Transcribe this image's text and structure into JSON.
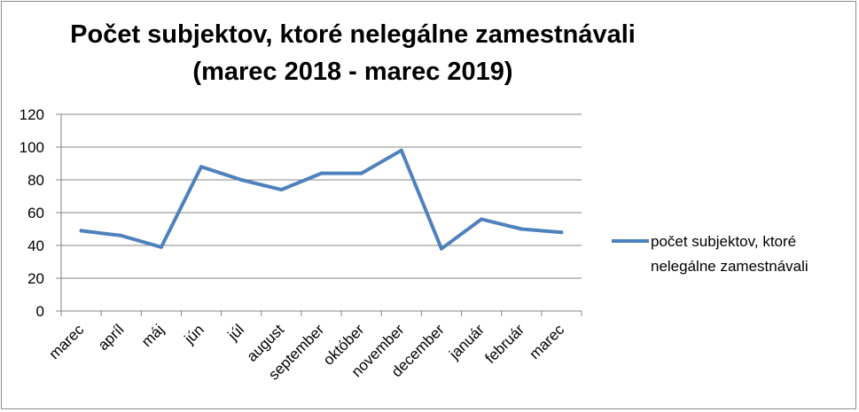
{
  "chart_data": {
    "type": "line",
    "title_lines": [
      "Počet subjektov, ktoré nelegálne zamestnávali",
      "(marec 2018 - marec 2019)"
    ],
    "categories": [
      "marec",
      "apríl",
      "máj",
      "jún",
      "júl",
      "august",
      "september",
      "október",
      "november",
      "december",
      "január",
      "február",
      "marec"
    ],
    "series": [
      {
        "name": "počet subjektov, ktoré nelegálne zamestnávali",
        "legend_lines": [
          "počet subjektov, ktoré",
          "nelegálne zamestnávali"
        ],
        "color": "#4f81bd",
        "values": [
          49,
          46,
          39,
          88,
          80,
          74,
          84,
          84,
          98,
          38,
          56,
          50,
          48
        ]
      }
    ],
    "ylim": [
      0,
      120
    ],
    "yticks": [
      0,
      20,
      40,
      60,
      80,
      100,
      120
    ],
    "xlabel": "",
    "ylabel": "",
    "grid": true,
    "legend_position": "right"
  }
}
